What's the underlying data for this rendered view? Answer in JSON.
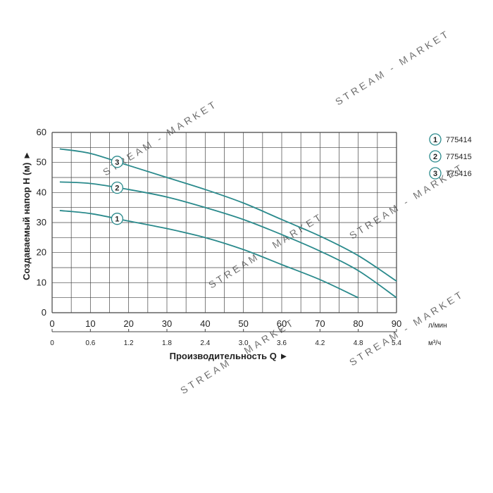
{
  "chart_data": {
    "type": "line",
    "x": [
      2,
      10,
      20,
      30,
      40,
      50,
      60,
      70,
      80,
      90
    ],
    "xlim": [
      0,
      90
    ],
    "ylim": [
      0,
      60
    ],
    "x_ticks": [
      "0",
      "10",
      "20",
      "30",
      "40",
      "50",
      "60",
      "70",
      "80",
      "90"
    ],
    "x2_ticks": [
      "0",
      "0.6",
      "1.2",
      "1.8",
      "2.4",
      "3.0",
      "3.6",
      "4.2",
      "4.8",
      "5.4"
    ],
    "y_ticks": [
      "0",
      "10",
      "20",
      "30",
      "40",
      "50",
      "60"
    ],
    "xlabel": "Производительность Q ►",
    "ylabel": "Создаваемый напор Н (м) ►",
    "x_unit": "л/мин",
    "x2_unit": "м³/ч",
    "grid": true,
    "legend_position": "right",
    "series": [
      {
        "name": "775414",
        "marker": "1",
        "x": [
          2,
          10,
          20,
          30,
          40,
          50,
          60,
          70,
          80
        ],
        "values": [
          34,
          33,
          30.5,
          28,
          25,
          21,
          16,
          11,
          5
        ]
      },
      {
        "name": "775415",
        "marker": "2",
        "x": [
          2,
          10,
          20,
          30,
          40,
          50,
          60,
          70,
          80,
          90
        ],
        "values": [
          43.5,
          43,
          41,
          38.5,
          35,
          31,
          26,
          20.5,
          14,
          5
        ]
      },
      {
        "name": "775416",
        "marker": "3",
        "x": [
          2,
          10,
          20,
          30,
          40,
          50,
          60,
          70,
          80,
          90
        ],
        "values": [
          54.5,
          53,
          49,
          45,
          41,
          36.5,
          31,
          25.5,
          19,
          10.5
        ]
      }
    ],
    "curve_label_x": 17,
    "colors": {
      "curve": "#2a8a8c",
      "grid": "#444444",
      "marker_fill": "#ffffff"
    }
  },
  "watermark": "STREAM - MARKET"
}
